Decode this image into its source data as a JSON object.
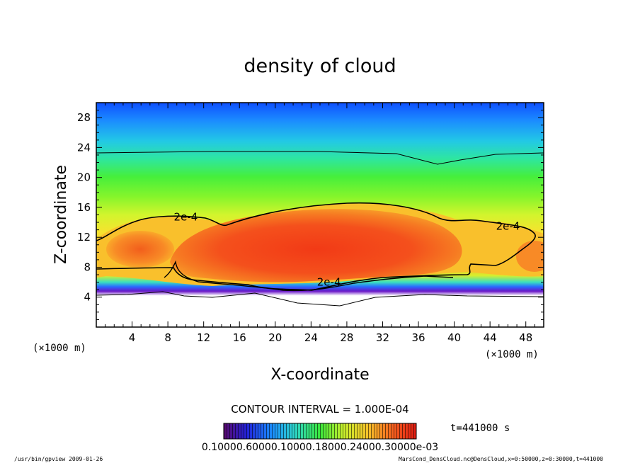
{
  "chart_data": {
    "type": "heatmap",
    "title": "density of cloud",
    "xlabel": "X-coordinate",
    "ylabel": "Z-coordinate",
    "x_units_left": "(×1000 m)",
    "x_units_right": "(×1000 m)",
    "xlim": [
      0,
      50
    ],
    "ylim": [
      0,
      30
    ],
    "x_ticks": [
      "4",
      "8",
      "12",
      "16",
      "20",
      "24",
      "28",
      "32",
      "36",
      "40",
      "44",
      "48"
    ],
    "y_ticks": [
      "4",
      "8",
      "12",
      "16",
      "20",
      "24",
      "28"
    ],
    "contour_labels": [
      {
        "text": "2e-4",
        "x": 10,
        "z": 14.7
      },
      {
        "text": "2e-4",
        "x": 46,
        "z": 13.5
      },
      {
        "text": "2e-4",
        "x": 26,
        "z": 6.0
      }
    ],
    "contour_interval_text": "CONTOUR INTERVAL = 1.000E-04",
    "time_text": "t=441000 s",
    "colorbar_tick_text": "0.10000.60000.10000.18000.24000.30000e-03",
    "footer_left": "/usr/bin/gpview   2009-01-26",
    "footer_right": "MarsCond_DensCloud.nc@DensCloud,x=0:50000,z=0:30000,t=441000"
  }
}
